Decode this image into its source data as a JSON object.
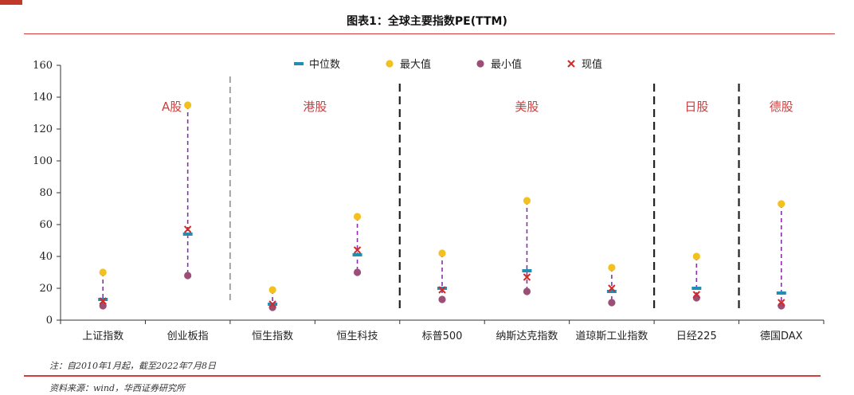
{
  "title": "图表1：全球主要指数PE(TTM)",
  "note": "注：自2010年1月起，截至2022年7月8日",
  "source": "资料来源：wind，华西证券研究所",
  "colors": {
    "median": "#1f8fb3",
    "max": "#f2c01f",
    "min": "#9b4f77",
    "current": "#d22b2b",
    "range_line": "#8a2fa8",
    "region_label": "#d23c3c",
    "accent_rule": "#d23c3c"
  },
  "chart_data": {
    "type": "scatter",
    "categories": [
      "上证指数",
      "创业板指",
      "恒生指数",
      "恒生科技",
      "标普500",
      "纳斯达克指数",
      "道琼斯工业指数",
      "日经225",
      "德国DAX"
    ],
    "series": [
      {
        "name": "中位数",
        "values": [
          13,
          54,
          10,
          41,
          20,
          31,
          18,
          20,
          17
        ]
      },
      {
        "name": "最大值",
        "values": [
          30,
          135,
          19,
          65,
          42,
          75,
          33,
          40,
          73
        ]
      },
      {
        "name": "最小值",
        "values": [
          9,
          28,
          8,
          30,
          13,
          18,
          11,
          14,
          9
        ]
      },
      {
        "name": "现值",
        "values": [
          12,
          57,
          10,
          44,
          19,
          27,
          20,
          16,
          11
        ]
      }
    ],
    "ylim": [
      0,
      160
    ],
    "yticks": [
      0,
      20,
      40,
      60,
      80,
      100,
      120,
      140,
      160
    ],
    "legend": "top",
    "grid": false,
    "regions": [
      {
        "label": "A股",
        "categories": [
          "上证指数",
          "创业板指"
        ]
      },
      {
        "label": "港股",
        "categories": [
          "恒生指数",
          "恒生科技"
        ]
      },
      {
        "label": "美股",
        "categories": [
          "标普500",
          "纳斯达克指数",
          "道琼斯工业指数"
        ]
      },
      {
        "label": "日股",
        "categories": [
          "日经225"
        ]
      },
      {
        "label": "德股",
        "categories": [
          "德国DAX"
        ]
      }
    ]
  }
}
